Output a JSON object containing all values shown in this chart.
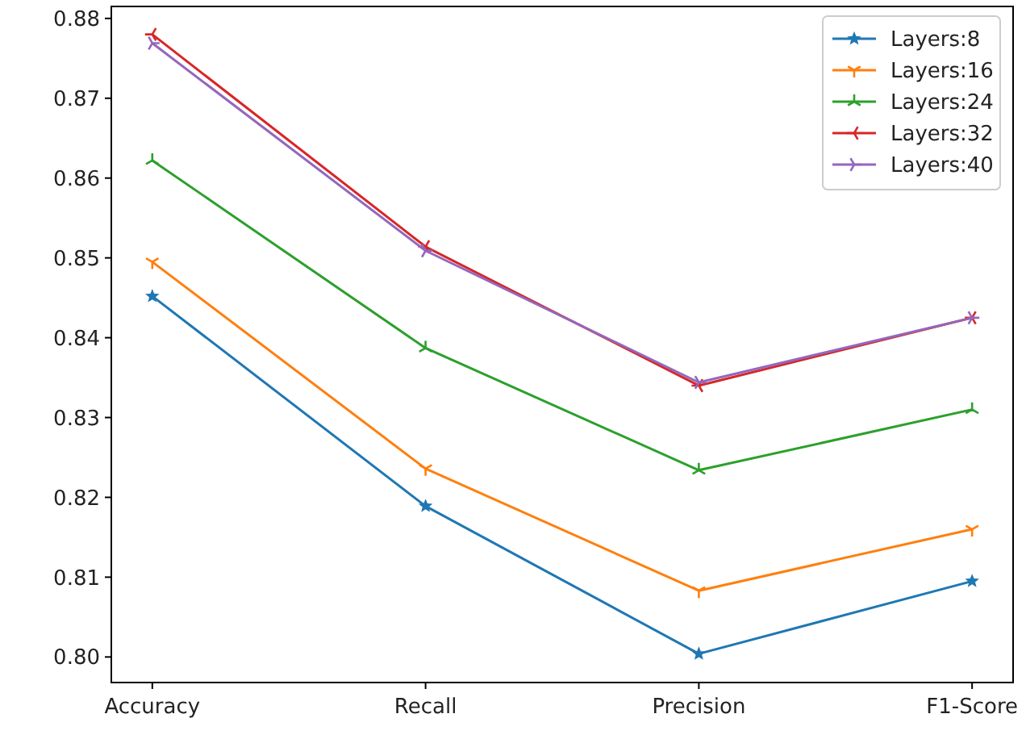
{
  "chart_data": {
    "type": "line",
    "categories": [
      "Accuracy",
      "Recall",
      "Precision",
      "F1-Score"
    ],
    "series": [
      {
        "name": "Layers:8",
        "color": "#1f77b4",
        "marker": "star",
        "values": [
          0.8452,
          0.8189,
          0.8004,
          0.8095
        ]
      },
      {
        "name": "Layers:16",
        "color": "#ff7f0e",
        "marker": "cross",
        "values": [
          0.8495,
          0.8236,
          0.8083,
          0.816
        ]
      },
      {
        "name": "Layers:24",
        "color": "#2ca02c",
        "marker": "cross",
        "values": [
          0.8622,
          0.8387,
          0.8234,
          0.831
        ]
      },
      {
        "name": "Layers:32",
        "color": "#d62728",
        "marker": "cross",
        "values": [
          0.878,
          0.8514,
          0.834,
          0.8425
        ]
      },
      {
        "name": "Layers:40",
        "color": "#9467bd",
        "marker": "cross",
        "values": [
          0.8769,
          0.8509,
          0.8344,
          0.8425
        ]
      }
    ],
    "ylim": [
      0.7968,
      0.8815
    ],
    "yticks": [
      {
        "value": 0.8,
        "label": "0.80"
      },
      {
        "value": 0.81,
        "label": "0.81"
      },
      {
        "value": 0.82,
        "label": "0.82"
      },
      {
        "value": 0.83,
        "label": "0.83"
      },
      {
        "value": 0.84,
        "label": "0.84"
      },
      {
        "value": 0.85,
        "label": "0.85"
      },
      {
        "value": 0.86,
        "label": "0.86"
      },
      {
        "value": 0.87,
        "label": "0.87"
      },
      {
        "value": 0.88,
        "label": "0.88"
      }
    ],
    "grid": false,
    "legend": "top right",
    "line_style": "solid"
  }
}
